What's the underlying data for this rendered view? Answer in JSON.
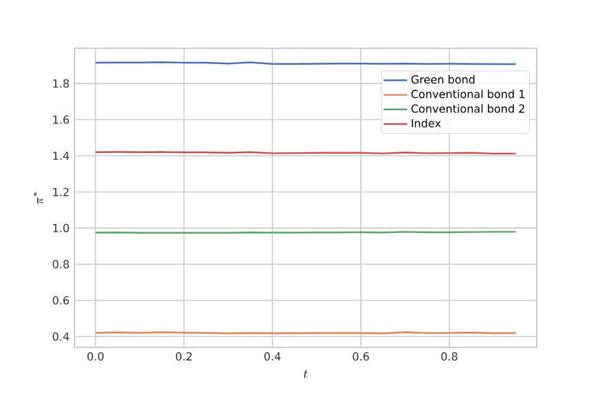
{
  "chart_data": {
    "type": "line",
    "xlabel": "t",
    "ylabel": "\\pi^{*}",
    "x": [
      0,
      0.05,
      0.1,
      0.15,
      0.2,
      0.25,
      0.3,
      0.35,
      0.4,
      0.45,
      0.5,
      0.55,
      0.6,
      0.65,
      0.7,
      0.75,
      0.8,
      0.85,
      0.9,
      0.95
    ],
    "series": [
      {
        "name": "Green bond",
        "color": "#4c72b0",
        "values": [
          1.915,
          1.916,
          1.916,
          1.918,
          1.915,
          1.915,
          1.91,
          1.917,
          1.908,
          1.908,
          1.909,
          1.91,
          1.91,
          1.909,
          1.91,
          1.908,
          1.909,
          1.908,
          1.907,
          1.907
        ]
      },
      {
        "name": "Conventional bond 1",
        "color": "#dd8452",
        "values": [
          0.42,
          0.423,
          0.42,
          0.424,
          0.421,
          0.42,
          0.417,
          0.419,
          0.418,
          0.418,
          0.419,
          0.419,
          0.419,
          0.417,
          0.424,
          0.419,
          0.42,
          0.422,
          0.418,
          0.419
        ]
      },
      {
        "name": "Conventional bond 2",
        "color": "#55a868",
        "values": [
          0.975,
          0.976,
          0.974,
          0.974,
          0.974,
          0.974,
          0.974,
          0.976,
          0.975,
          0.975,
          0.976,
          0.976,
          0.977,
          0.976,
          0.979,
          0.977,
          0.977,
          0.978,
          0.979,
          0.979
        ]
      },
      {
        "name": "Index",
        "color": "#c44e52",
        "values": [
          1.42,
          1.421,
          1.42,
          1.421,
          1.419,
          1.419,
          1.416,
          1.42,
          1.414,
          1.415,
          1.416,
          1.416,
          1.416,
          1.413,
          1.418,
          1.414,
          1.415,
          1.416,
          1.412,
          1.412
        ]
      }
    ],
    "xlim": [
      -0.0475,
      0.9975
    ],
    "ylim": [
      0.34,
      1.995
    ],
    "xticks": [
      {
        "value": 0,
        "label": "0.0"
      },
      {
        "value": 0.2,
        "label": "0.2"
      },
      {
        "value": 0.4,
        "label": "0.4"
      },
      {
        "value": 0.6,
        "label": "0.6"
      },
      {
        "value": 0.8,
        "label": "0.8"
      }
    ],
    "yticks": [
      0.4,
      0.6,
      0.8,
      {
        "value": 1.0,
        "label": "1.0"
      },
      1.2,
      1.4,
      1.6,
      1.8
    ],
    "grid": true,
    "legend": "top right",
    "marker": "none",
    "line_style": "solid"
  }
}
